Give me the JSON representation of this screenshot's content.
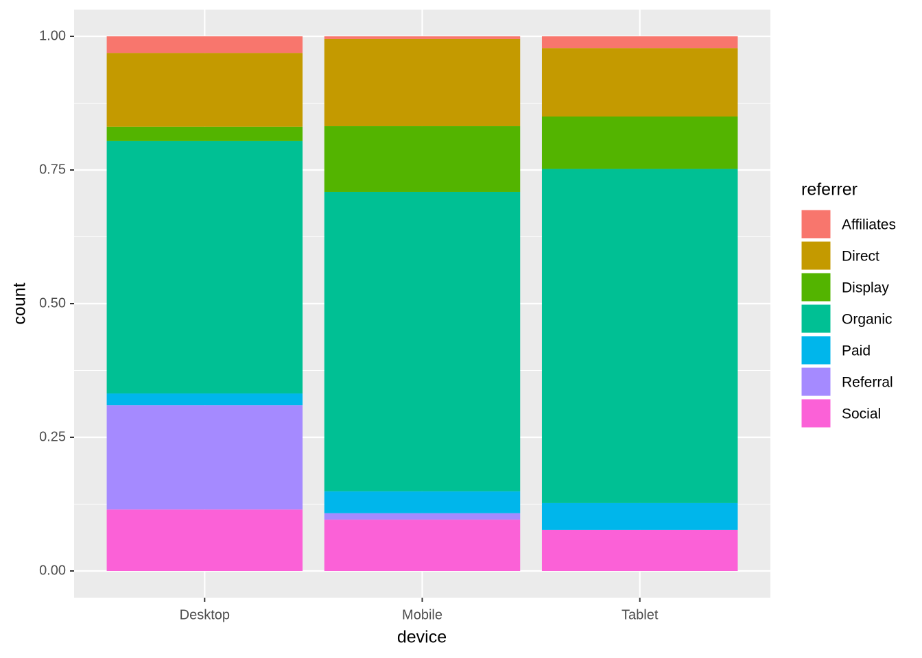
{
  "chart_data": {
    "type": "stacked-bar",
    "x_label": "device",
    "y_label": "count",
    "legend_title": "referrer",
    "categories": [
      "Desktop",
      "Mobile",
      "Tablet"
    ],
    "series": [
      {
        "name": "Affiliates",
        "color": "#F8766D",
        "values": [
          0.031,
          0.005,
          0.022
        ]
      },
      {
        "name": "Direct",
        "color": "#C49A00",
        "values": [
          0.138,
          0.163,
          0.128
        ]
      },
      {
        "name": "Display",
        "color": "#53B400",
        "values": [
          0.027,
          0.123,
          0.098
        ]
      },
      {
        "name": "Organic",
        "color": "#00C094",
        "values": [
          0.472,
          0.56,
          0.625
        ]
      },
      {
        "name": "Paid",
        "color": "#00B6EB",
        "values": [
          0.022,
          0.041,
          0.05
        ]
      },
      {
        "name": "Referral",
        "color": "#A58AFF",
        "values": [
          0.195,
          0.012,
          0
        ]
      },
      {
        "name": "Social",
        "color": "#FB61D7",
        "values": [
          0.115,
          0.096,
          0.077
        ]
      }
    ],
    "ylim": [
      -0.05,
      1.05
    ],
    "yticks": [
      {
        "value": 0,
        "label": "0.00"
      },
      {
        "value": 0.25,
        "label": "0.25"
      },
      {
        "value": 0.5,
        "label": "0.50"
      },
      {
        "value": 0.75,
        "label": "0.75"
      },
      {
        "value": 1,
        "label": "1.00"
      }
    ],
    "grid": true,
    "legend": "right"
  }
}
